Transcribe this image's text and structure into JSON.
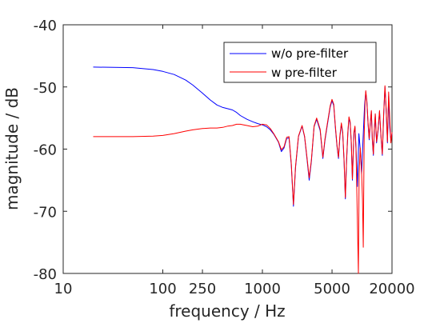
{
  "chart_data": {
    "type": "line",
    "title": "",
    "xlabel": "frequency / Hz",
    "ylabel": "magnitude / dB",
    "xscale": "log",
    "xlim": [
      10,
      20000
    ],
    "ylim": [
      -80,
      -40
    ],
    "xticks": [
      10,
      100,
      250,
      1000,
      5000,
      20000
    ],
    "xtick_labels": [
      "10",
      "100",
      "250",
      "1000",
      "5000",
      "20000"
    ],
    "yticks": [
      -80,
      -70,
      -60,
      -50,
      -40
    ],
    "ytick_labels": [
      "-80",
      "-70",
      "-60",
      "-50",
      "-40"
    ],
    "grid": false,
    "legend_position": "top-right",
    "series": [
      {
        "name": "w/o pre-filter",
        "color": "#0000ff",
        "points": [
          [
            20,
            -46.8
          ],
          [
            50,
            -46.9
          ],
          [
            80,
            -47.2
          ],
          [
            100,
            -47.5
          ],
          [
            130,
            -48.0
          ],
          [
            170,
            -48.9
          ],
          [
            200,
            -49.7
          ],
          [
            250,
            -51.0
          ],
          [
            300,
            -52.1
          ],
          [
            350,
            -52.9
          ],
          [
            400,
            -53.3
          ],
          [
            450,
            -53.5
          ],
          [
            500,
            -53.7
          ],
          [
            550,
            -54.1
          ],
          [
            600,
            -54.6
          ],
          [
            700,
            -55.2
          ],
          [
            800,
            -55.6
          ],
          [
            900,
            -55.9
          ],
          [
            1000,
            -56.1
          ],
          [
            1100,
            -56.4
          ],
          [
            1200,
            -56.9
          ],
          [
            1300,
            -57.6
          ],
          [
            1450,
            -58.9
          ],
          [
            1550,
            -60.4
          ],
          [
            1650,
            -59.8
          ],
          [
            1750,
            -58.3
          ],
          [
            1850,
            -58.2
          ],
          [
            1950,
            -62.5
          ],
          [
            2050,
            -69.2
          ],
          [
            2150,
            -63.0
          ],
          [
            2300,
            -58.0
          ],
          [
            2500,
            -56.3
          ],
          [
            2650,
            -58.0
          ],
          [
            2800,
            -61.5
          ],
          [
            2950,
            -65.0
          ],
          [
            3100,
            -62.0
          ],
          [
            3300,
            -56.4
          ],
          [
            3500,
            -55.2
          ],
          [
            3800,
            -57.0
          ],
          [
            4050,
            -61.5
          ],
          [
            4250,
            -58.5
          ],
          [
            4500,
            -56.0
          ],
          [
            4800,
            -53.2
          ],
          [
            5000,
            -52.2
          ],
          [
            5200,
            -53.0
          ],
          [
            5400,
            -56.5
          ],
          [
            5600,
            -59.5
          ],
          [
            5800,
            -61.5
          ],
          [
            6000,
            -58.0
          ],
          [
            6200,
            -56.0
          ],
          [
            6400,
            -57.5
          ],
          [
            6600,
            -62.0
          ],
          [
            6800,
            -68.0
          ],
          [
            7000,
            -62.0
          ],
          [
            7200,
            -57.5
          ],
          [
            7400,
            -55.0
          ],
          [
            7600,
            -55.8
          ],
          [
            7800,
            -59.0
          ],
          [
            8000,
            -65.0
          ],
          [
            8150,
            -61.0
          ],
          [
            8300,
            -57.5
          ],
          [
            8500,
            -56.5
          ],
          [
            8700,
            -60.0
          ],
          [
            9000,
            -66.0
          ],
          [
            9300,
            -57.5
          ],
          [
            9600,
            -60.0
          ],
          [
            9900,
            -64.0
          ],
          [
            10200,
            -59.0
          ],
          [
            10600,
            -53.0
          ],
          [
            10900,
            -50.8
          ],
          [
            11200,
            -52.5
          ],
          [
            11500,
            -56.0
          ],
          [
            11800,
            -58.5
          ],
          [
            12100,
            -56.0
          ],
          [
            12400,
            -54.0
          ],
          [
            12700,
            -58.5
          ],
          [
            13000,
            -61.0
          ],
          [
            13300,
            -57.0
          ],
          [
            13600,
            -54.5
          ],
          [
            14000,
            -59.0
          ],
          [
            14500,
            -57.0
          ],
          [
            15000,
            -54.0
          ],
          [
            15500,
            -58.0
          ],
          [
            16000,
            -61.0
          ],
          [
            16500,
            -54.5
          ],
          [
            17000,
            -50.0
          ],
          [
            17500,
            -54.0
          ],
          [
            18000,
            -59.0
          ],
          [
            18500,
            -51.5
          ],
          [
            19000,
            -56.5
          ],
          [
            19500,
            -58.5
          ],
          [
            20000,
            -57.5
          ]
        ]
      },
      {
        "name": "w pre-filter",
        "color": "#ff0000",
        "points": [
          [
            20,
            -58.0
          ],
          [
            50,
            -58.0
          ],
          [
            80,
            -57.9
          ],
          [
            100,
            -57.8
          ],
          [
            130,
            -57.5
          ],
          [
            170,
            -57.1
          ],
          [
            200,
            -56.9
          ],
          [
            250,
            -56.7
          ],
          [
            300,
            -56.6
          ],
          [
            350,
            -56.6
          ],
          [
            400,
            -56.5
          ],
          [
            450,
            -56.3
          ],
          [
            500,
            -56.2
          ],
          [
            550,
            -56.0
          ],
          [
            600,
            -56.0
          ],
          [
            650,
            -56.1
          ],
          [
            700,
            -56.2
          ],
          [
            800,
            -56.4
          ],
          [
            900,
            -56.3
          ],
          [
            1000,
            -56.0
          ],
          [
            1100,
            -56.1
          ],
          [
            1200,
            -56.7
          ],
          [
            1300,
            -57.5
          ],
          [
            1450,
            -58.8
          ],
          [
            1550,
            -60.1
          ],
          [
            1650,
            -59.6
          ],
          [
            1750,
            -58.1
          ],
          [
            1850,
            -58.0
          ],
          [
            1950,
            -62.3
          ],
          [
            2050,
            -68.9
          ],
          [
            2150,
            -62.8
          ],
          [
            2300,
            -57.9
          ],
          [
            2500,
            -56.2
          ],
          [
            2650,
            -57.9
          ],
          [
            2800,
            -61.3
          ],
          [
            2950,
            -64.6
          ],
          [
            3100,
            -61.8
          ],
          [
            3300,
            -56.3
          ],
          [
            3500,
            -55.0
          ],
          [
            3800,
            -56.8
          ],
          [
            4050,
            -61.3
          ],
          [
            4250,
            -58.3
          ],
          [
            4500,
            -55.8
          ],
          [
            4800,
            -53.0
          ],
          [
            5000,
            -52.0
          ],
          [
            5200,
            -52.8
          ],
          [
            5400,
            -56.3
          ],
          [
            5600,
            -59.3
          ],
          [
            5800,
            -61.3
          ],
          [
            6000,
            -57.8
          ],
          [
            6200,
            -55.8
          ],
          [
            6400,
            -57.3
          ],
          [
            6600,
            -61.8
          ],
          [
            6800,
            -67.8
          ],
          [
            7000,
            -61.8
          ],
          [
            7200,
            -57.3
          ],
          [
            7400,
            -54.8
          ],
          [
            7600,
            -55.6
          ],
          [
            7800,
            -58.8
          ],
          [
            8000,
            -64.8
          ],
          [
            8150,
            -60.8
          ],
          [
            8300,
            -57.3
          ],
          [
            8500,
            -56.3
          ],
          [
            8700,
            -59.8
          ],
          [
            9000,
            -72.0
          ],
          [
            9200,
            -80.0
          ],
          [
            9350,
            -64.0
          ],
          [
            9600,
            -59.8
          ],
          [
            9900,
            -63.8
          ],
          [
            10100,
            -68.0
          ],
          [
            10300,
            -75.8
          ],
          [
            10500,
            -58.0
          ],
          [
            10700,
            -53.0
          ],
          [
            10900,
            -50.6
          ],
          [
            11200,
            -52.3
          ],
          [
            11500,
            -55.8
          ],
          [
            11800,
            -58.3
          ],
          [
            12100,
            -55.8
          ],
          [
            12400,
            -53.8
          ],
          [
            12700,
            -58.3
          ],
          [
            13000,
            -60.8
          ],
          [
            13300,
            -56.8
          ],
          [
            13600,
            -54.3
          ],
          [
            14000,
            -58.8
          ],
          [
            14500,
            -56.8
          ],
          [
            15000,
            -53.8
          ],
          [
            15500,
            -57.8
          ],
          [
            16000,
            -60.8
          ],
          [
            16500,
            -54.3
          ],
          [
            17000,
            -49.8
          ],
          [
            17500,
            -53.8
          ],
          [
            18000,
            -58.8
          ],
          [
            18500,
            -50.8
          ],
          [
            19000,
            -55.0
          ],
          [
            19500,
            -59.0
          ],
          [
            20000,
            -57.3
          ]
        ]
      }
    ]
  }
}
